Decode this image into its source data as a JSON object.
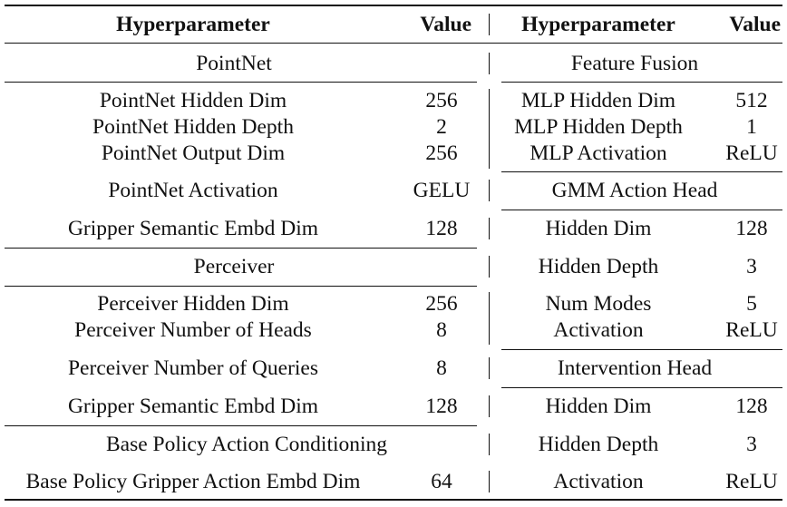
{
  "header": {
    "left_param": "Hyperparameter",
    "left_value": "Value",
    "right_param": "Hyperparameter",
    "right_value": "Value"
  },
  "left": {
    "pointnet": {
      "title": "PointNet",
      "rows": [
        {
          "name": "PointNet Hidden Dim",
          "value": "256"
        },
        {
          "name": "PointNet Hidden Depth",
          "value": "2"
        },
        {
          "name": "PointNet Output Dim",
          "value": "256"
        },
        {
          "name": "PointNet Activation",
          "value": "GELU"
        },
        {
          "name": "Gripper Semantic Embd Dim",
          "value": "128"
        }
      ]
    },
    "perceiver": {
      "title": "Perceiver",
      "rows": [
        {
          "name": "Perceiver Hidden Dim",
          "value": "256"
        },
        {
          "name": "Perceiver Number of Heads",
          "value": "8"
        },
        {
          "name": "Perceiver Number of Queries",
          "value": "8"
        },
        {
          "name": "Gripper Semantic Embd Dim",
          "value": "128"
        }
      ]
    },
    "base_policy": {
      "title": "Base Policy Action Conditioning",
      "rows": [
        {
          "name": "Base Policy Gripper Action Embd Dim",
          "value": "64"
        }
      ]
    }
  },
  "right": {
    "feature_fusion": {
      "title": "Feature Fusion",
      "rows": [
        {
          "name": "MLP Hidden Dim",
          "value": "512"
        },
        {
          "name": "MLP Hidden Depth",
          "value": "1"
        },
        {
          "name": "MLP Activation",
          "value": "ReLU"
        }
      ]
    },
    "gmm_head": {
      "title": "GMM Action Head",
      "rows": [
        {
          "name": "Hidden Dim",
          "value": "128"
        },
        {
          "name": "Hidden Depth",
          "value": "3"
        },
        {
          "name": "Num Modes",
          "value": "5"
        },
        {
          "name": "Activation",
          "value": "ReLU"
        }
      ]
    },
    "intervention_head": {
      "title": "Intervention Head",
      "rows": [
        {
          "name": "Hidden Dim",
          "value": "128"
        },
        {
          "name": "Hidden Depth",
          "value": "3"
        },
        {
          "name": "Activation",
          "value": "ReLU"
        }
      ]
    }
  }
}
